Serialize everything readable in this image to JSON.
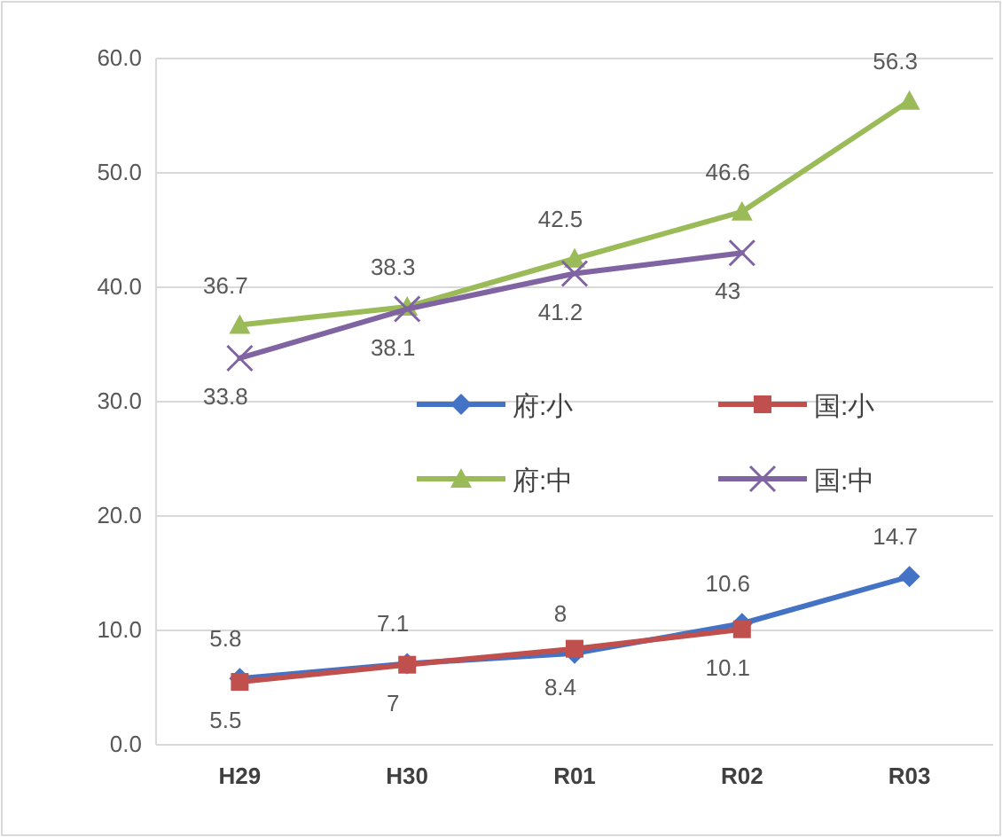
{
  "chart_data": {
    "type": "line",
    "categories": [
      "H29",
      "H30",
      "R01",
      "R02",
      "R03"
    ],
    "series": [
      {
        "name": "府:小",
        "color": "#4472c4",
        "marker": "diamond",
        "values": [
          5.8,
          7.1,
          8,
          10.6,
          14.7
        ]
      },
      {
        "name": "国:小",
        "color": "#c0504d",
        "marker": "square",
        "values": [
          5.5,
          7,
          8.4,
          10.1,
          null
        ]
      },
      {
        "name": "府:中",
        "color": "#9bbb59",
        "marker": "triangle",
        "values": [
          36.7,
          38.3,
          42.5,
          46.6,
          56.3
        ]
      },
      {
        "name": "国:中",
        "color": "#8064a2",
        "marker": "cross",
        "values": [
          33.8,
          38.1,
          41.2,
          43,
          null
        ]
      }
    ],
    "ylim": [
      0,
      60
    ],
    "yticks": [
      {
        "value": 0,
        "label": "0.0"
      },
      {
        "value": 10,
        "label": "10.0"
      },
      {
        "value": 20,
        "label": "20.0"
      },
      {
        "value": 30,
        "label": "30.0"
      },
      {
        "value": 40,
        "label": "40.0"
      },
      {
        "value": 50,
        "label": "50.0"
      },
      {
        "value": 60,
        "label": "60.0"
      }
    ],
    "grid": "y",
    "legend": "center",
    "data_labels": true,
    "line_style": "solid"
  }
}
